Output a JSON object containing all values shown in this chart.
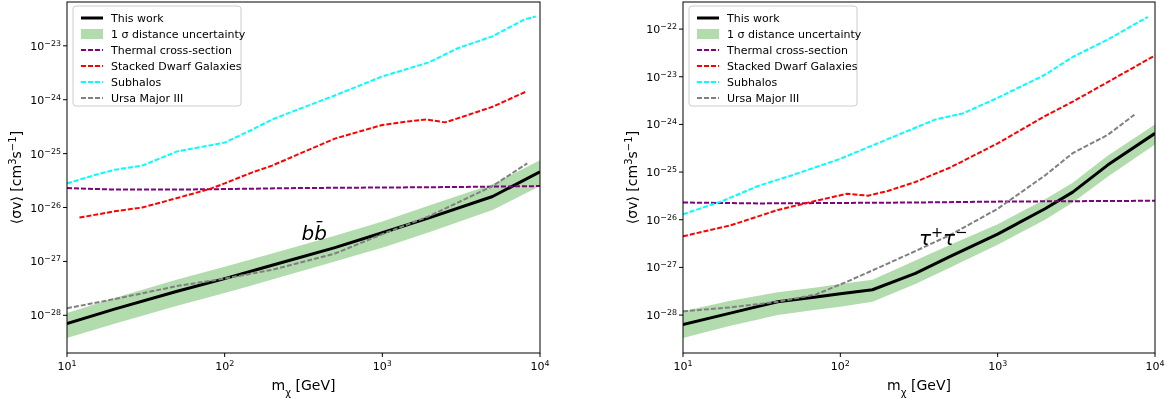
{
  "chart_data": [
    {
      "type": "line",
      "xlabel": "m$_{χ}$ [GeV]",
      "ylabel": "⟨σv⟩ [cm$^{3}$s$^{−1}$]",
      "log": "xy",
      "xlim": [
        10,
        10000
      ],
      "ylim": [
        2e-29,
        6.5e-23
      ],
      "xticks": [
        {
          "value": 10,
          "label": "10$^{1}$"
        },
        {
          "value": 100,
          "label": "10$^{2}$"
        },
        {
          "value": 1000,
          "label": "10$^{3}$"
        },
        {
          "value": 10000,
          "label": "10$^{4}$"
        }
      ],
      "yticks": [
        {
          "value": 1e-28,
          "label": "10$^{−28}$"
        },
        {
          "value": 1e-27,
          "label": "10$^{−27}$"
        },
        {
          "value": 1e-26,
          "label": "10$^{−26}$"
        },
        {
          "value": 1e-25,
          "label": "10$^{−25}$"
        },
        {
          "value": 1e-24,
          "label": "10$^{−24}$"
        },
        {
          "value": 1e-23,
          "label": "10$^{−23}$"
        }
      ],
      "legend": "top left",
      "grid": false,
      "annotations": [
        {
          "text": "bb̄",
          "x": 370,
          "y": 2.5e-27
        }
      ],
      "series": [
        {
          "name": "This work",
          "color": "#000000",
          "line_style": "solid",
          "x": [
            10,
            20,
            50,
            100,
            200,
            500,
            1000,
            2000,
            5000,
            10000
          ],
          "values": [
            7e-29,
            1.3e-28,
            2.8e-28,
            4.8e-28,
            8.5e-28,
            1.8e-27,
            3.4e-27,
            6.5e-27,
            1.6e-26,
            4.6e-26
          ],
          "lower": [
            3.8e-29,
            7e-29,
            1.5e-28,
            2.6e-28,
            4.6e-28,
            1e-27,
            1.8e-27,
            3.5e-27,
            9e-27,
            2.5e-26
          ],
          "upper": [
            1.1e-28,
            2.1e-28,
            4.6e-28,
            8e-28,
            1.4e-27,
            3e-27,
            5.5e-27,
            1.1e-26,
            2.7e-26,
            7.5e-26
          ]
        },
        {
          "name": "1 σ distance uncertainty",
          "type": "area",
          "color": "#b2dcae"
        },
        {
          "name": "Thermal cross-section",
          "color": "#800080",
          "line_style": "dashed",
          "x": [
            10,
            20,
            50,
            100,
            300,
            1000,
            3000,
            10000
          ],
          "values": [
            2.3e-26,
            2.15e-26,
            2.15e-26,
            2.2e-26,
            2.3e-26,
            2.35e-26,
            2.4e-26,
            2.5e-26
          ]
        },
        {
          "name": "Stacked Dwarf Galaxies",
          "color": "#ff0000",
          "line_style": "dashed",
          "x": [
            12,
            20,
            30,
            50,
            80,
            100,
            150,
            200,
            300,
            500,
            1000,
            1500,
            1900,
            2500,
            3000,
            5000,
            8100
          ],
          "values": [
            6.5e-27,
            8.5e-27,
            1e-26,
            1.5e-26,
            2.2e-26,
            2.8e-26,
            4.5e-26,
            6e-26,
            1e-25,
            1.9e-25,
            3.4e-25,
            4e-25,
            4.3e-25,
            3.8e-25,
            4.5e-25,
            7.4e-25,
            1.4e-24
          ]
        },
        {
          "name": "Subhalos",
          "color": "#00ffff",
          "line_style": "dashed",
          "x": [
            10,
            15,
            20,
            30,
            50,
            100,
            150,
            200,
            300,
            500,
            1000,
            2000,
            3000,
            5000,
            8000,
            9400
          ],
          "values": [
            2.8e-26,
            4e-26,
            5e-26,
            6e-26,
            1.1e-25,
            1.6e-25,
            2.8e-25,
            4.3e-25,
            6.8e-25,
            1.2e-24,
            2.7e-24,
            5e-24,
            9e-24,
            1.5e-23,
            3.1e-23,
            3.5e-23
          ]
        },
        {
          "name": "Ursa Major III",
          "color": "#808080",
          "line_style": "dashed",
          "x": [
            10,
            20,
            50,
            100,
            200,
            500,
            1000,
            2000,
            5000,
            8300
          ],
          "values": [
            1.35e-28,
            2e-28,
            3.5e-28,
            4.8e-28,
            7e-28,
            1.4e-27,
            3.2e-27,
            7e-27,
            2.5e-26,
            6.6e-26
          ]
        }
      ]
    },
    {
      "type": "line",
      "xlabel": "m$_{χ}$ [GeV]",
      "ylabel": "⟨σv⟩ [cm$^{3}$s$^{−1}$]",
      "log": "xy",
      "xlim": [
        10,
        10000
      ],
      "ylim": [
        1.6e-29,
        3.7e-22
      ],
      "xticks": [
        {
          "value": 10,
          "label": "10$^{1}$"
        },
        {
          "value": 100,
          "label": "10$^{2}$"
        },
        {
          "value": 1000,
          "label": "10$^{3}$"
        },
        {
          "value": 10000,
          "label": "10$^{4}$"
        }
      ],
      "yticks": [
        {
          "value": 1e-28,
          "label": "10$^{−28}$"
        },
        {
          "value": 1e-27,
          "label": "10$^{−27}$"
        },
        {
          "value": 1e-26,
          "label": "10$^{−26}$"
        },
        {
          "value": 1e-25,
          "label": "10$^{−25}$"
        },
        {
          "value": 1e-24,
          "label": "10$^{−24}$"
        },
        {
          "value": 1e-23,
          "label": "10$^{−23}$"
        },
        {
          "value": 1e-22,
          "label": "10$^{−22}$"
        }
      ],
      "legend": "top left",
      "grid": false,
      "annotations": [
        {
          "text": "τ$^{+}$τ$^{−}$",
          "x": 450,
          "y": 3e-27
        }
      ],
      "series": [
        {
          "name": "This work",
          "color": "#000000",
          "line_style": "solid",
          "x": [
            10,
            20,
            40,
            70,
            100,
            160,
            300,
            500,
            1000,
            2000,
            3000,
            5000,
            10000
          ],
          "values": [
            6.3e-29,
            1.1e-28,
            1.9e-28,
            2.4e-28,
            2.8e-28,
            3.4e-28,
            7.5e-28,
            1.7e-27,
            5e-27,
            1.7e-26,
            3.8e-26,
            1.4e-25,
            6.5e-25
          ],
          "lower": [
            3.3e-29,
            6e-29,
            1e-28,
            1.3e-28,
            1.5e-28,
            1.9e-28,
            4.5e-28,
            1e-27,
            3e-27,
            1e-26,
            2.3e-26,
            8e-26,
            3.8e-25
          ],
          "upper": [
            1.2e-28,
            2e-28,
            3e-28,
            3.8e-28,
            4.5e-28,
            5.5e-28,
            1.4e-27,
            3e-27,
            8e-27,
            2.7e-26,
            6e-26,
            2.2e-25,
            1e-24
          ]
        },
        {
          "name": "1 σ distance uncertainty",
          "type": "area",
          "color": "#b2dcae"
        },
        {
          "name": "Thermal cross-section",
          "color": "#800080",
          "line_style": "dashed",
          "x": [
            10,
            30,
            100,
            300,
            1000,
            3000,
            10000
          ],
          "values": [
            2.3e-26,
            2.2e-26,
            2.25e-26,
            2.3e-26,
            2.4e-26,
            2.45e-26,
            2.5e-26
          ]
        },
        {
          "name": "Stacked Dwarf Galaxies",
          "color": "#ff0000",
          "line_style": "dashed",
          "x": [
            10,
            20,
            40,
            70,
            110,
            150,
            200,
            300,
            500,
            1000,
            2000,
            3000,
            5000,
            10000
          ],
          "values": [
            4.5e-27,
            7.6e-27,
            1.6e-26,
            2.5e-26,
            3.5e-26,
            3.2e-26,
            4e-26,
            6.2e-26,
            1.25e-25,
            4e-25,
            1.5e-24,
            3e-24,
            7.7e-24,
            2.8e-23
          ]
        },
        {
          "name": "Subhalos",
          "color": "#00ffff",
          "line_style": "dashed",
          "x": [
            10,
            18,
            30,
            50,
            100,
            200,
            400,
            600,
            1000,
            2000,
            3000,
            5000,
            9000
          ],
          "values": [
            1.3e-26,
            2.5e-26,
            5.1e-26,
            8.7e-26,
            1.9e-25,
            4.9e-25,
            1.26e-24,
            1.7e-24,
            3.6e-24,
            1.1e-23,
            2.6e-23,
            6e-23,
            1.8e-22
          ]
        },
        {
          "name": "Ursa Major III",
          "color": "#808080",
          "line_style": "dashed",
          "x": [
            10,
            20,
            40,
            70,
            110,
            200,
            300,
            500,
            1000,
            2000,
            3000,
            5000,
            7400
          ],
          "values": [
            1.2e-28,
            1.45e-28,
            1.9e-28,
            2.7e-28,
            5e-28,
            1.2e-27,
            2.2e-27,
            4.8e-27,
            1.7e-26,
            8.5e-26,
            2.5e-25,
            6e-25,
            1.6e-24
          ]
        }
      ]
    }
  ]
}
